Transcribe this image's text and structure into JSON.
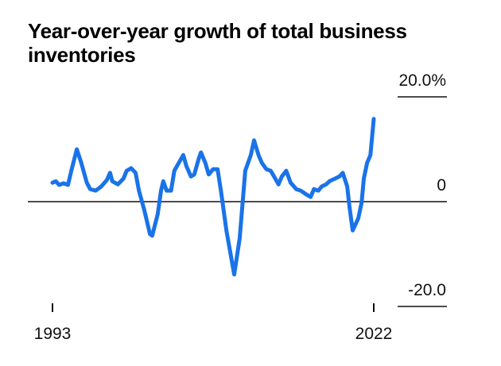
{
  "chart_data": {
    "type": "line",
    "title": "Year-over-year growth of total business inventories",
    "xlabel": "",
    "ylabel": "",
    "xlim": [
      1993,
      2022
    ],
    "ylim": [
      -20,
      20
    ],
    "x_ticks": [
      {
        "value": 1993,
        "label": "1993"
      },
      {
        "value": 2022,
        "label": "2022"
      }
    ],
    "y_ticks": [
      {
        "value": 20,
        "label": "20.0%"
      },
      {
        "value": 0,
        "label": "0"
      },
      {
        "value": -20,
        "label": "-20.0"
      }
    ],
    "grid": false,
    "legend": "none",
    "line_color": "#1a73e8",
    "series": [
      {
        "name": "Total business inventories YoY growth (%)",
        "points": [
          [
            1993.0,
            3.6
          ],
          [
            1993.3,
            3.9
          ],
          [
            1993.6,
            3.2
          ],
          [
            1994.0,
            3.5
          ],
          [
            1994.4,
            3.2
          ],
          [
            1994.7,
            5.9
          ],
          [
            1995.2,
            10.0
          ],
          [
            1995.6,
            7.4
          ],
          [
            1996.1,
            3.6
          ],
          [
            1996.4,
            2.4
          ],
          [
            1996.9,
            2.1
          ],
          [
            1997.4,
            2.9
          ],
          [
            1997.9,
            4.1
          ],
          [
            1998.2,
            5.5
          ],
          [
            1998.4,
            3.9
          ],
          [
            1998.9,
            3.3
          ],
          [
            1999.4,
            4.4
          ],
          [
            1999.7,
            5.9
          ],
          [
            2000.1,
            6.4
          ],
          [
            2000.5,
            5.5
          ],
          [
            2000.8,
            2.1
          ],
          [
            2001.3,
            -1.7
          ],
          [
            2001.8,
            -6.2
          ],
          [
            2002.0,
            -6.5
          ],
          [
            2002.5,
            -2.4
          ],
          [
            2002.8,
            2.1
          ],
          [
            2003.0,
            3.9
          ],
          [
            2003.3,
            2.1
          ],
          [
            2003.7,
            2.1
          ],
          [
            2004.0,
            5.9
          ],
          [
            2004.4,
            7.4
          ],
          [
            2004.8,
            8.9
          ],
          [
            2005.1,
            6.7
          ],
          [
            2005.5,
            4.8
          ],
          [
            2005.8,
            5.2
          ],
          [
            2006.2,
            8.2
          ],
          [
            2006.4,
            9.4
          ],
          [
            2006.8,
            7.4
          ],
          [
            2007.1,
            5.2
          ],
          [
            2007.5,
            6.2
          ],
          [
            2007.9,
            6.2
          ],
          [
            2008.2,
            2.1
          ],
          [
            2008.7,
            -5.5
          ],
          [
            2009.4,
            -13.9
          ],
          [
            2009.9,
            -7.0
          ],
          [
            2010.4,
            5.9
          ],
          [
            2010.9,
            8.9
          ],
          [
            2011.2,
            11.7
          ],
          [
            2011.6,
            8.9
          ],
          [
            2011.9,
            7.4
          ],
          [
            2012.3,
            6.2
          ],
          [
            2012.7,
            5.9
          ],
          [
            2013.0,
            4.8
          ],
          [
            2013.4,
            3.3
          ],
          [
            2013.7,
            4.8
          ],
          [
            2014.1,
            5.9
          ],
          [
            2014.5,
            3.6
          ],
          [
            2015.0,
            2.4
          ],
          [
            2015.4,
            2.1
          ],
          [
            2015.9,
            1.4
          ],
          [
            2016.3,
            0.9
          ],
          [
            2016.6,
            2.4
          ],
          [
            2017.0,
            2.1
          ],
          [
            2017.3,
            2.9
          ],
          [
            2017.7,
            3.3
          ],
          [
            2018.0,
            3.9
          ],
          [
            2018.5,
            4.4
          ],
          [
            2018.9,
            4.8
          ],
          [
            2019.2,
            5.5
          ],
          [
            2019.6,
            2.9
          ],
          [
            2019.8,
            -0.9
          ],
          [
            2020.1,
            -5.5
          ],
          [
            2020.6,
            -3.2
          ],
          [
            2020.9,
            -0.2
          ],
          [
            2021.1,
            4.4
          ],
          [
            2021.4,
            7.4
          ],
          [
            2021.7,
            8.9
          ],
          [
            2022.0,
            15.8
          ]
        ]
      }
    ]
  }
}
